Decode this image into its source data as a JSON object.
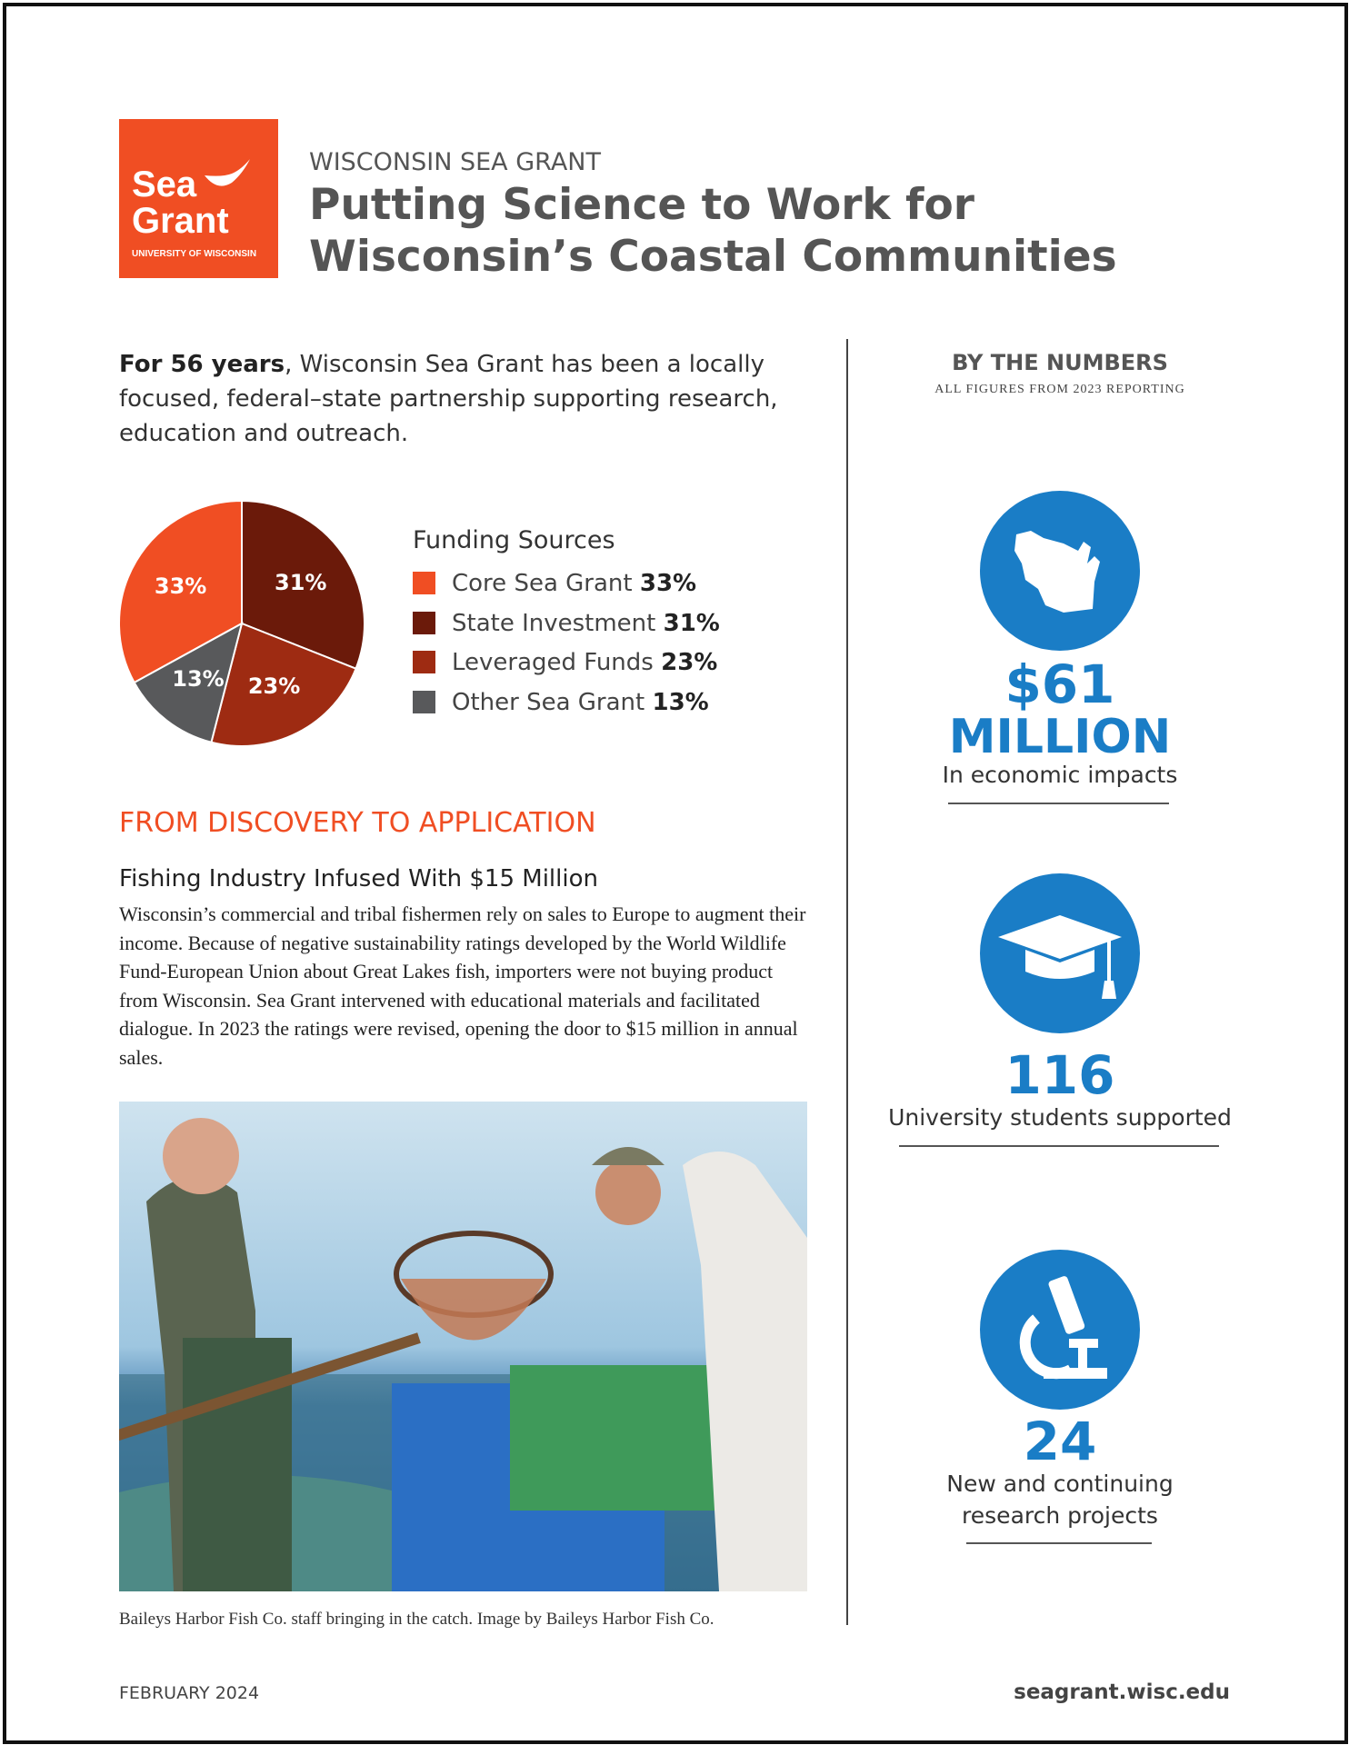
{
  "logo": {
    "line1": "Sea",
    "line2": "Grant",
    "line3": "UNIVERSITY OF WISCONSIN"
  },
  "header": {
    "kicker": "WISCONSIN SEA GRANT",
    "title_line1": "Putting Science to Work for",
    "title_line2": "Wisconsin’s Coastal Communities"
  },
  "intro": {
    "lead": "For 56 years",
    "text": ", Wisconsin Sea Grant has been a locally focused, federal–state partnership supporting research, education and outreach."
  },
  "chart_data": {
    "type": "pie",
    "title": "Funding Sources",
    "categories": [
      "Core Sea Grant",
      "State Investment",
      "Leveraged Funds",
      "Other Sea Grant"
    ],
    "values": [
      33,
      31,
      23,
      13
    ],
    "value_labels": [
      "33%",
      "31%",
      "23%",
      "13%"
    ],
    "colors": [
      "#f04e23",
      "#6b1a0a",
      "#9e2b12",
      "#58595b"
    ]
  },
  "section": {
    "heading": "FROM DISCOVERY TO APPLICATION",
    "subheading": "Fishing Industry Infused With $15 Million",
    "body": "Wisconsin’s commercial and tribal fishermen rely on sales to Europe to augment their income. Because of negative sustainability ratings developed by the World Wildlife Fund-European Union about Great Lakes fish, importers were not buying product from Wisconsin. Sea Grant intervened with educational materials and facilitated dialogue. In 2023 the ratings were revised, opening the door to $15 million in annual sales.",
    "caption": "Baileys Harbor Fish Co. staff bringing in the catch. Image by Baileys Harbor Fish Co."
  },
  "numbers": {
    "heading": "BY THE NUMBERS",
    "subheading": "ALL FIGURES FROM 2023 REPORTING",
    "stats": [
      {
        "figure": "$61",
        "unit": "MILLION",
        "label": [
          "In economic impacts"
        ]
      },
      {
        "figure": "116",
        "label": [
          "University students supported"
        ]
      },
      {
        "figure": "24",
        "label": [
          "New and continuing",
          "research projects"
        ]
      }
    ]
  },
  "footer": {
    "date": "FEBRUARY 2024",
    "url": "seagrant.wisc.edu"
  }
}
